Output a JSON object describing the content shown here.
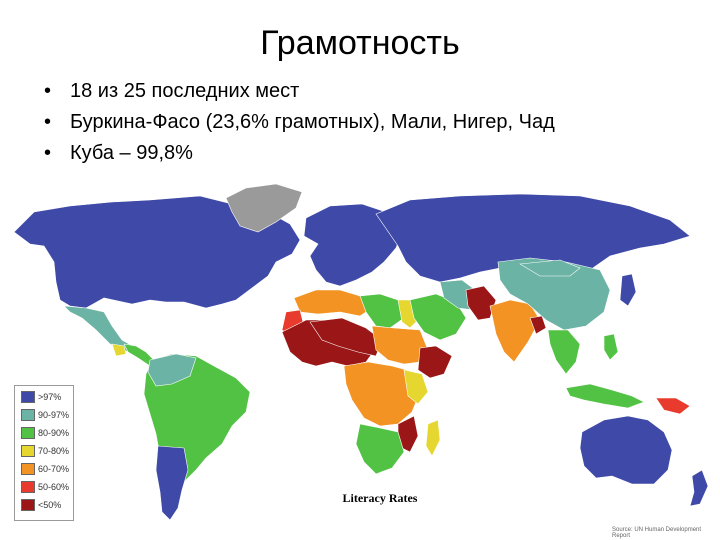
{
  "slide": {
    "title": "Грамотность",
    "bullets": [
      "18 из 25 последних мест",
      "Буркина-Фасо (23,6% грамотных), Мали, Нигер, Чад",
      "Куба – 99,8%"
    ]
  },
  "map": {
    "caption": "Literacy Rates",
    "source": "Source: UN Human Development Report",
    "legend": [
      {
        "label": ">97%",
        "color": "#3f4aa8"
      },
      {
        "label": "90-97%",
        "color": "#6bb3a4"
      },
      {
        "label": "80-90%",
        "color": "#52c245"
      },
      {
        "label": "70-80%",
        "color": "#e6d630"
      },
      {
        "label": "60-70%",
        "color": "#f39323"
      },
      {
        "label": "50-60%",
        "color": "#e83a2d"
      },
      {
        "label": "<50%",
        "color": "#9b1717"
      }
    ],
    "no_data_color": "#9a9a9a"
  }
}
